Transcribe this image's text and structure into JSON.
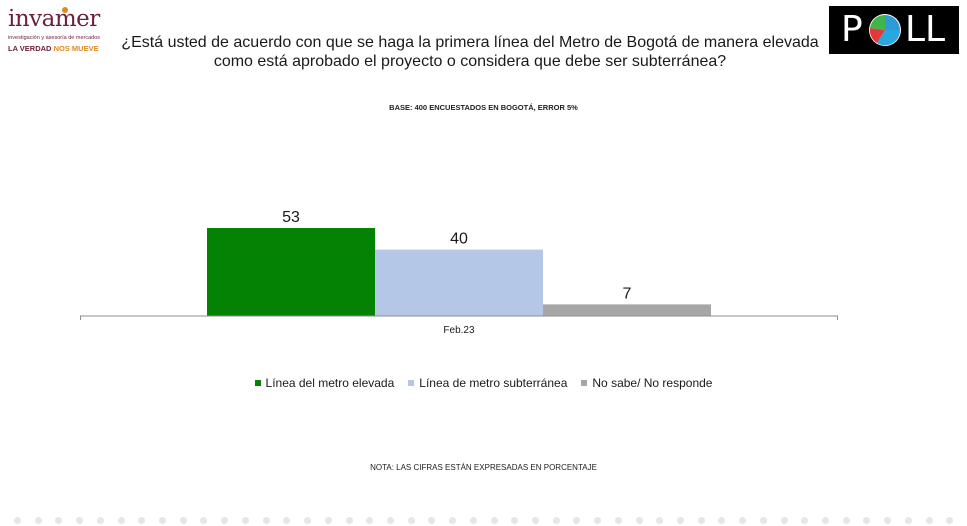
{
  "header": {
    "logo_left": {
      "name": "invamer",
      "subtitle": "investigación y asesoría de mercados",
      "tagline_part1": "LA VERDAD",
      "tagline_part2": "NOS MUEVE"
    },
    "logo_right": {
      "text_p": "P",
      "text_ll": "LL"
    },
    "question": "¿Está usted de acuerdo con que se haga la primera línea del Metro de Bogotá de manera elevada como está aprobado el proyecto o considera que debe ser subterránea?",
    "base": "BASE: 400 ENCUESTADOS EN BOGOTÁ, ERROR 5%"
  },
  "chart_data": {
    "type": "bar",
    "categories": [
      "Feb.23"
    ],
    "series": [
      {
        "name": "Línea del metro elevada",
        "values": [
          53
        ],
        "color": "#038203"
      },
      {
        "name": "Línea de metro subterránea",
        "values": [
          40
        ],
        "color": "#b4c7e7"
      },
      {
        "name": "No sabe/ No responde",
        "values": [
          7
        ],
        "color": "#a6a6a6"
      }
    ],
    "ylim": [
      0,
      60
    ],
    "grid": false,
    "legend": "bottom"
  },
  "footer": {
    "nota": "NOTA: LAS CIFRAS ESTÁN EXPRESADAS EN PORCENTAJE"
  },
  "colors": {
    "logo_brand": "#6b1f3a",
    "logo_accent": "#e08a1e",
    "poll_bg": "#000000"
  }
}
